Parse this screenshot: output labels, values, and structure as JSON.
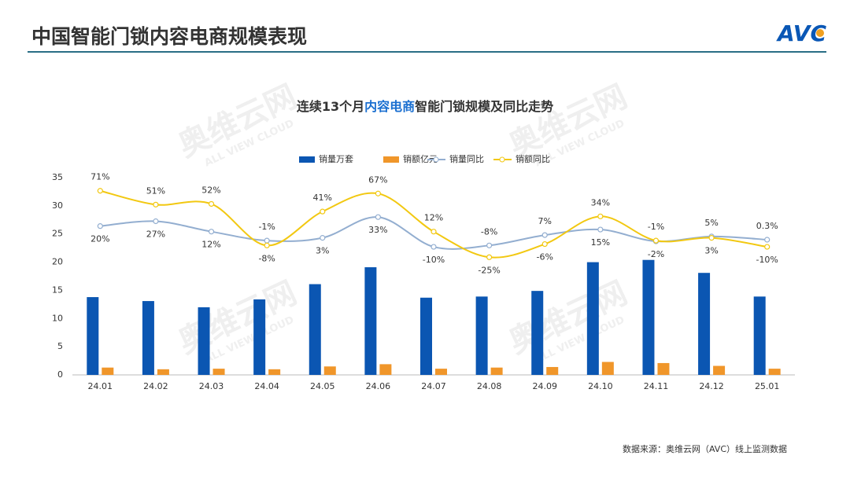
{
  "header": {
    "title": "中国智能门锁内容电商规模表现",
    "logo": "AVC"
  },
  "watermark": {
    "name": "奥维云网",
    "sub": "ALL VIEW CLOUD"
  },
  "source": "数据来源：奥维云网（AVC）线上监测数据",
  "chart_data": {
    "type": "bar-line",
    "title_parts": [
      "连续13个月",
      "内容电商",
      "智能门锁规模及同比走势"
    ],
    "categories": [
      "24.01",
      "24.02",
      "24.03",
      "24.04",
      "24.05",
      "24.06",
      "24.07",
      "24.08",
      "24.09",
      "24.10",
      "24.11",
      "24.12",
      "25.01"
    ],
    "series": [
      {
        "name": "销量万套",
        "type": "bar",
        "color": "#0b56b2",
        "values": [
          13.8,
          13.1,
          12.0,
          13.4,
          16.1,
          19.1,
          13.7,
          13.9,
          14.9,
          20.0,
          20.4,
          18.1,
          13.9
        ]
      },
      {
        "name": "销额亿元",
        "type": "bar",
        "color": "#f0962a",
        "values": [
          1.3,
          1.0,
          1.1,
          1.0,
          1.5,
          1.9,
          1.1,
          1.3,
          1.4,
          2.3,
          2.1,
          1.6,
          1.1
        ]
      },
      {
        "name": "销量同比",
        "type": "line",
        "axis": "y2",
        "color": "#93aed0",
        "values": [
          20,
          27,
          12,
          -1,
          3,
          33,
          -10,
          -8,
          7,
          15,
          -2,
          5,
          0.3
        ],
        "value_labels": [
          "20%",
          "27%",
          "12%",
          "-1%",
          "3%",
          "33%",
          "-10%",
          "-8%",
          "7%",
          "15%",
          "-2%",
          "5%",
          "0.3%"
        ]
      },
      {
        "name": "销额同比",
        "type": "line",
        "axis": "y2",
        "color": "#f2c811",
        "values": [
          71,
          51,
          52,
          -8,
          41,
          67,
          12,
          -25,
          -6,
          34,
          -1,
          3,
          -10
        ],
        "value_labels": [
          "71%",
          "51%",
          "52%",
          "-8%",
          "41%",
          "67%",
          "12%",
          "-25%",
          "-6%",
          "34%",
          "-1%",
          "3%",
          "-10%"
        ]
      }
    ],
    "ylim": [
      0,
      35
    ],
    "yticks": [
      0,
      5,
      10,
      15,
      20,
      25,
      30,
      35
    ],
    "y2lim": [
      -195,
      90
    ],
    "legend": "top"
  }
}
